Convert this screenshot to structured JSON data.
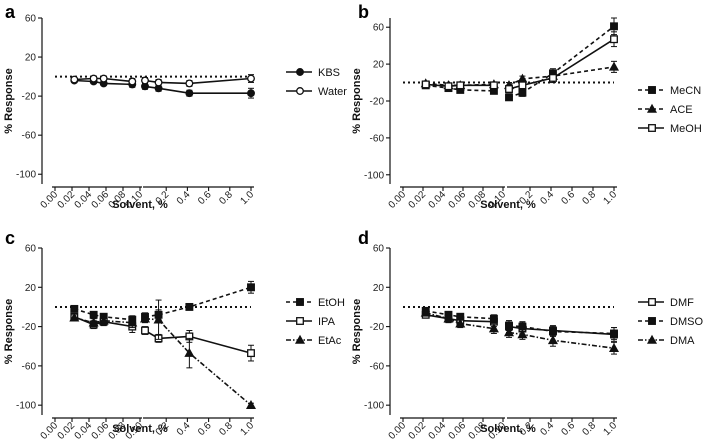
{
  "chart_data": [
    {
      "panel": "a",
      "type": "line",
      "xlabel": "Solvent, %",
      "ylabel": "% Response",
      "ylim": [
        -110,
        60
      ],
      "yticks": [
        -100,
        -60,
        -20,
        20,
        60
      ],
      "x": [
        0.025,
        0.05,
        0.063,
        0.1,
        0.125,
        0.25,
        0.5,
        1.0
      ],
      "xticks_left": [
        "0.00",
        "0.02",
        "0.04",
        "0.06",
        "0.08",
        "0.10"
      ],
      "xticks_right": [
        "0.2",
        "0.4",
        "0.6",
        "0.8",
        "1.0"
      ],
      "x_split": [
        0.0,
        0.11,
        0.14,
        1.0
      ],
      "baseline": 0,
      "series": [
        {
          "name": "KBS",
          "marker": "circle-filled",
          "dash": "solid",
          "values": [
            -4,
            -5,
            -7,
            -8,
            -10,
            -12,
            -17,
            -17
          ],
          "err": [
            2,
            2,
            2,
            3,
            3,
            3,
            3,
            5
          ]
        },
        {
          "name": "Water",
          "marker": "circle-open",
          "dash": "solid",
          "values": [
            -3,
            -2,
            -2,
            -5,
            -4,
            -6,
            -7,
            -2
          ],
          "err": [
            2,
            2,
            2,
            3,
            3,
            3,
            3,
            4
          ]
        }
      ]
    },
    {
      "panel": "b",
      "type": "line",
      "xlabel": "Solvent, %",
      "ylabel": "% Response",
      "ylim": [
        -110,
        70
      ],
      "yticks": [
        -100,
        -60,
        -20,
        20,
        60
      ],
      "x": [
        0.025,
        0.05,
        0.063,
        0.1,
        0.125,
        0.25,
        0.5,
        1.0
      ],
      "xticks_left": [
        "0.00",
        "0.02",
        "0.04",
        "0.06",
        "0.08",
        "0.10"
      ],
      "xticks_right": [
        "0.2",
        "0.4",
        "0.6",
        "0.8",
        "1.0"
      ],
      "x_split": [
        0.0,
        0.11,
        0.14,
        1.0
      ],
      "baseline": 0,
      "series": [
        {
          "name": "MeCN",
          "marker": "square-filled",
          "dash": "dash",
          "values": [
            -3,
            -6,
            -8,
            -9,
            -16,
            -11,
            10,
            61
          ],
          "err": [
            2,
            3,
            3,
            3,
            3,
            4,
            5,
            9
          ]
        },
        {
          "name": "ACE",
          "marker": "triangle-filled",
          "dash": "dash",
          "values": [
            -1,
            -3,
            -3,
            -2,
            -3,
            4,
            7,
            17
          ],
          "err": [
            2,
            2,
            2,
            2,
            3,
            3,
            4,
            6
          ]
        },
        {
          "name": "MeOH",
          "marker": "square-open",
          "dash": "solid",
          "values": [
            -2,
            -4,
            -3,
            -3,
            -7,
            -3,
            5,
            47
          ],
          "err": [
            2,
            3,
            3,
            3,
            4,
            4,
            5,
            8
          ]
        }
      ]
    },
    {
      "panel": "c",
      "type": "line",
      "xlabel": "Solvent, %",
      "ylabel": "% Response",
      "ylim": [
        -110,
        60
      ],
      "yticks": [
        -100,
        -60,
        -20,
        20,
        60
      ],
      "x": [
        0.025,
        0.05,
        0.063,
        0.1,
        0.125,
        0.25,
        0.5,
        1.0
      ],
      "xticks_left": [
        "0.00",
        "0.02",
        "0.04",
        "0.06",
        "0.08",
        "0.10"
      ],
      "xticks_right": [
        "0.2",
        "0.4",
        "0.6",
        "0.8",
        "1.0"
      ],
      "x_split": [
        0.0,
        0.11,
        0.14,
        1.0
      ],
      "baseline": 0,
      "series": [
        {
          "name": "EtOH",
          "marker": "square-filled",
          "dash": "dash",
          "values": [
            -2,
            -8,
            -10,
            -13,
            -10,
            -8,
            0,
            20
          ],
          "err": [
            2,
            3,
            3,
            4,
            4,
            5,
            3,
            6
          ]
        },
        {
          "name": "IPA",
          "marker": "square-open",
          "dash": "solid",
          "values": [
            -10,
            -18,
            -15,
            -20,
            -24,
            -32,
            -30,
            -47
          ],
          "err": [
            3,
            4,
            4,
            6,
            4,
            4,
            6,
            8
          ]
        },
        {
          "name": "EtAc",
          "marker": "triangle-filled",
          "dash": "dashdot",
          "values": [
            -11,
            -16,
            -14,
            -16,
            -12,
            -13,
            -47,
            -100
          ],
          "err": [
            3,
            4,
            4,
            5,
            4,
            20,
            15,
            2
          ]
        }
      ]
    },
    {
      "panel": "d",
      "type": "line",
      "xlabel": "Solvent, %",
      "ylabel": "% Response",
      "ylim": [
        -110,
        60
      ],
      "yticks": [
        -100,
        -60,
        -20,
        20,
        60
      ],
      "x": [
        0.025,
        0.05,
        0.063,
        0.1,
        0.125,
        0.25,
        0.5,
        1.0
      ],
      "xticks_left": [
        "0.00",
        "0.02",
        "0.04",
        "0.06",
        "0.08",
        "0.10"
      ],
      "xticks_right": [
        "0.2",
        "0.4",
        "0.6",
        "0.8",
        "1.0"
      ],
      "x_split": [
        0.0,
        0.11,
        0.14,
        1.0
      ],
      "baseline": 0,
      "series": [
        {
          "name": "DMF",
          "marker": "square-open",
          "dash": "solid",
          "values": [
            -8,
            -12,
            -14,
            -15,
            -20,
            -22,
            -24,
            -28
          ],
          "err": [
            3,
            3,
            4,
            5,
            6,
            6,
            5,
            7
          ]
        },
        {
          "name": "DMSO",
          "marker": "square-filled",
          "dash": "dash",
          "values": [
            -4,
            -8,
            -10,
            -12,
            -19,
            -20,
            -25,
            -27
          ],
          "err": [
            2,
            3,
            3,
            4,
            5,
            5,
            5,
            6
          ]
        },
        {
          "name": "DMA",
          "marker": "triangle-filled",
          "dash": "dashdot",
          "values": [
            -6,
            -12,
            -17,
            -22,
            -26,
            -28,
            -34,
            -42
          ],
          "err": [
            3,
            4,
            4,
            5,
            5,
            5,
            6,
            6
          ]
        }
      ]
    }
  ]
}
